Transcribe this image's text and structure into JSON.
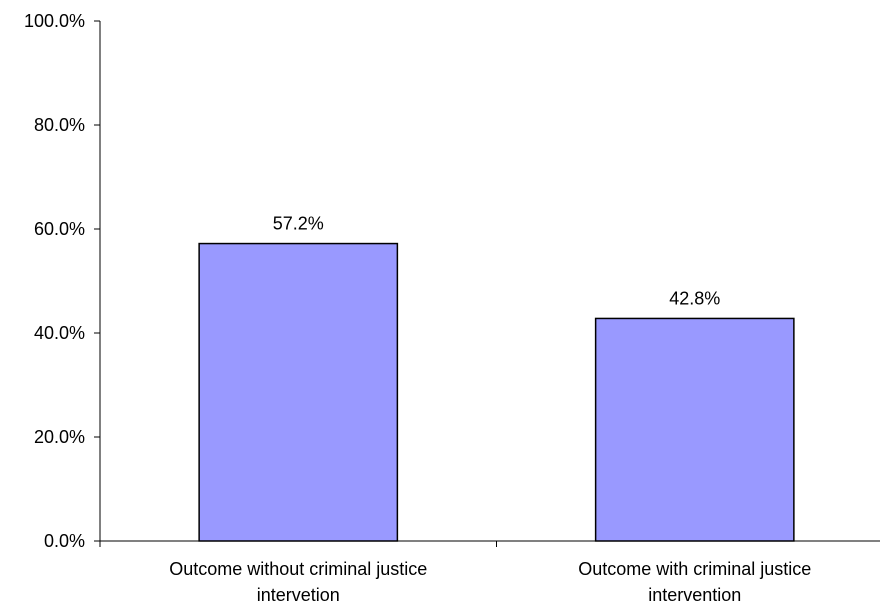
{
  "chart_data": {
    "type": "bar",
    "title": "",
    "xlabel": "",
    "ylabel": "",
    "categories": [
      [
        "Outcome without criminal justice",
        "intervetion"
      ],
      [
        "Outcome with criminal justice",
        "intervention"
      ]
    ],
    "values": [
      57.2,
      42.8
    ],
    "data_labels": [
      "57.2%",
      "42.8%"
    ],
    "ylim": [
      0,
      100
    ],
    "yticks": [
      0,
      20,
      40,
      60,
      80,
      100
    ],
    "ytick_labels": [
      "0.0%",
      "20.0%",
      "40.0%",
      "60.0%",
      "80.0%",
      "100.0%"
    ],
    "bar_color": "#9999ff",
    "bar_edge_color": "#000000",
    "grid": false,
    "legend": "none"
  }
}
